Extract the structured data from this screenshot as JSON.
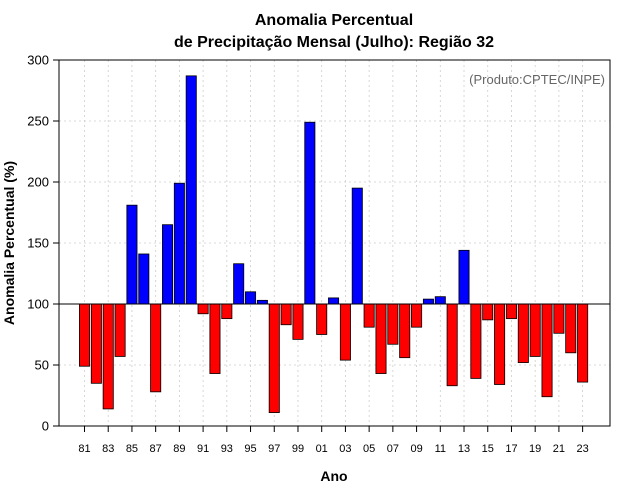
{
  "chart_data": {
    "type": "bar",
    "title": "Anomalia Percentual",
    "subtitle": "de Precipitação Mensal (Julho): Região 32",
    "xlabel": "Ano",
    "ylabel": "Anomalia Percentual (%)",
    "credit": "(Produto:CPTEC/INPE)",
    "baseline": 100,
    "ylim": [
      0,
      300
    ],
    "yticks": [
      0,
      50,
      100,
      150,
      200,
      250,
      300
    ],
    "grid": true,
    "colors": {
      "above": "#0000ff",
      "below": "#ff0000",
      "baseline": "#000000"
    },
    "categories": [
      "81",
      "82",
      "83",
      "84",
      "85",
      "86",
      "87",
      "88",
      "89",
      "90",
      "91",
      "92",
      "93",
      "94",
      "95",
      "96",
      "97",
      "98",
      "99",
      "00",
      "01",
      "02",
      "03",
      "04",
      "05",
      "06",
      "07",
      "08",
      "09",
      "10",
      "11",
      "12",
      "13",
      "14",
      "15",
      "16",
      "17",
      "18",
      "19",
      "20",
      "21",
      "22",
      "23"
    ],
    "xtick_labels": [
      "81",
      "83",
      "85",
      "87",
      "89",
      "91",
      "93",
      "95",
      "97",
      "99",
      "01",
      "03",
      "05",
      "07",
      "09",
      "11",
      "13",
      "15",
      "17",
      "19",
      "21",
      "23"
    ],
    "values": [
      49,
      35,
      14,
      57,
      181,
      141,
      28,
      165,
      199,
      287,
      92,
      43,
      88,
      133,
      110,
      103,
      11,
      83,
      71,
      249,
      75,
      105,
      54,
      195,
      81,
      43,
      67,
      56,
      81,
      104,
      106,
      33,
      144,
      39,
      87,
      34,
      88,
      52,
      57,
      24,
      76,
      60,
      36
    ]
  }
}
